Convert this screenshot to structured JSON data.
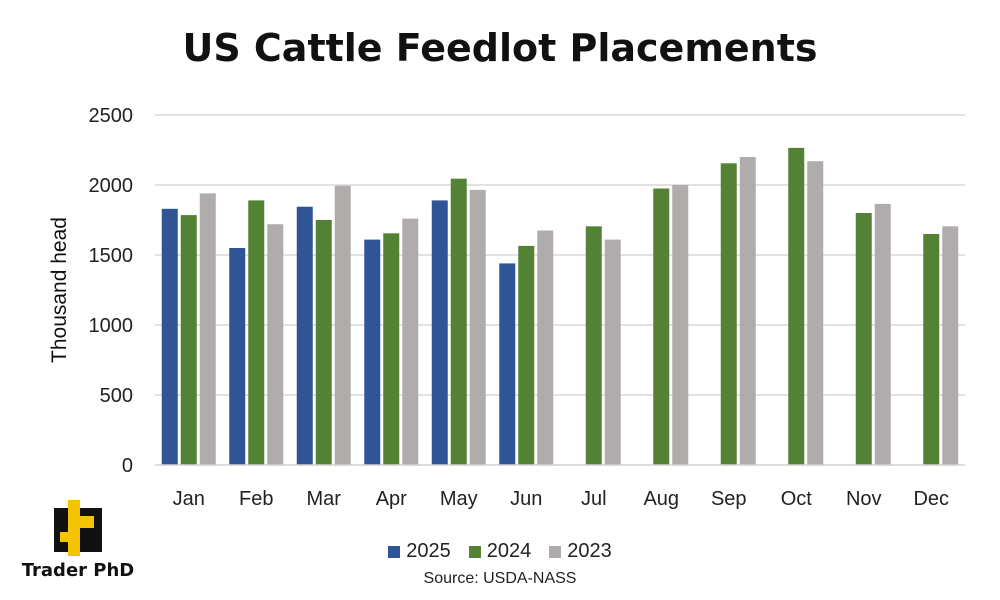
{
  "chart_data": {
    "type": "bar",
    "title": "US Cattle Feedlot Placements",
    "ylabel": "Thousand head",
    "xlabel": "",
    "ylim": [
      0,
      2500
    ],
    "yticks": [
      0,
      500,
      1000,
      1500,
      2000,
      2500
    ],
    "grid": true,
    "legend_position": "bottom",
    "categories": [
      "Jan",
      "Feb",
      "Mar",
      "Apr",
      "May",
      "Jun",
      "Jul",
      "Aug",
      "Sep",
      "Oct",
      "Nov",
      "Dec"
    ],
    "series": [
      {
        "name": "2025",
        "color": "#2f5597",
        "values": [
          1830,
          1550,
          1845,
          1610,
          1890,
          1440,
          null,
          null,
          null,
          null,
          null,
          null
        ]
      },
      {
        "name": "2024",
        "color": "#548235",
        "values": [
          1785,
          1890,
          1750,
          1655,
          2045,
          1565,
          1705,
          1975,
          2155,
          2265,
          1800,
          1650
        ]
      },
      {
        "name": "2023",
        "color": "#b0acac",
        "values": [
          1940,
          1720,
          1995,
          1760,
          1965,
          1675,
          1610,
          2000,
          2200,
          2170,
          1865,
          1705
        ]
      }
    ]
  },
  "source": "Source: USDA-NASS",
  "logo": {
    "text": "Trader PhD",
    "icon": "trader-phd-logo-icon"
  }
}
